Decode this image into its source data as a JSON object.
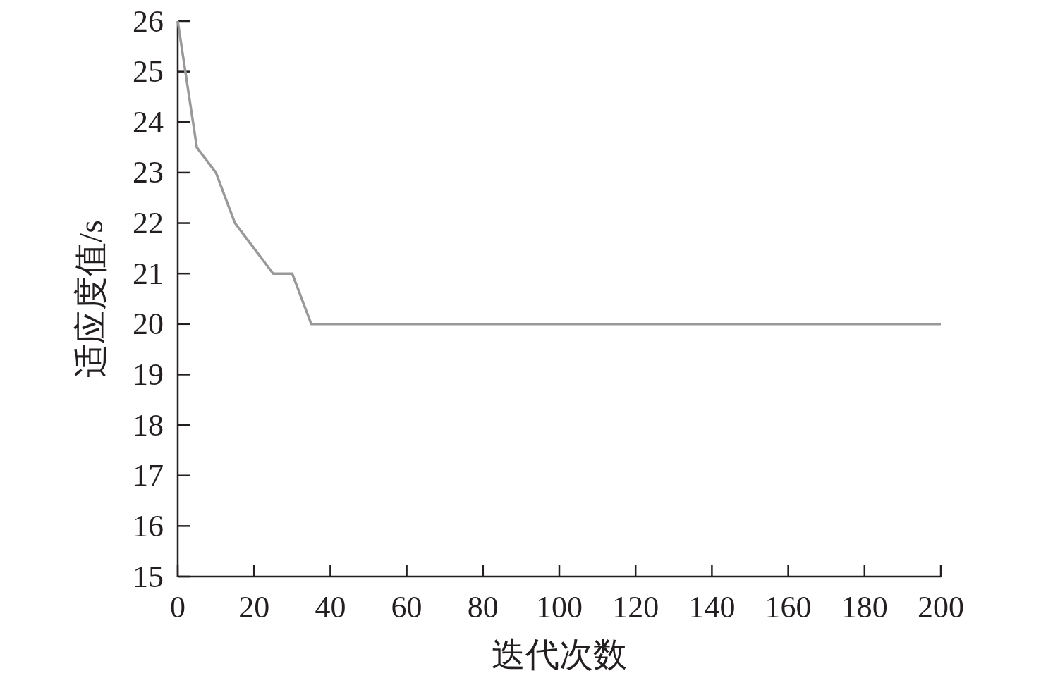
{
  "chart_data": {
    "type": "line",
    "xlabel": "迭代次数",
    "ylabel": "适应度值/s",
    "x": [
      0,
      5,
      10,
      15,
      20,
      25,
      30,
      35,
      200
    ],
    "series": [
      {
        "color": "#999999",
        "values": [
          26,
          23.5,
          23,
          22,
          21.5,
          21,
          21,
          20,
          20
        ]
      }
    ],
    "xlim": [
      0,
      200
    ],
    "xticks": [
      0,
      20,
      40,
      60,
      80,
      100,
      120,
      140,
      160,
      180,
      200
    ],
    "ylim": [
      15,
      26
    ],
    "yticks": [
      15,
      16,
      17,
      18,
      19,
      20,
      21,
      22,
      23,
      24,
      25,
      26
    ],
    "grid": false,
    "marker": "none",
    "line_style": "solid"
  }
}
